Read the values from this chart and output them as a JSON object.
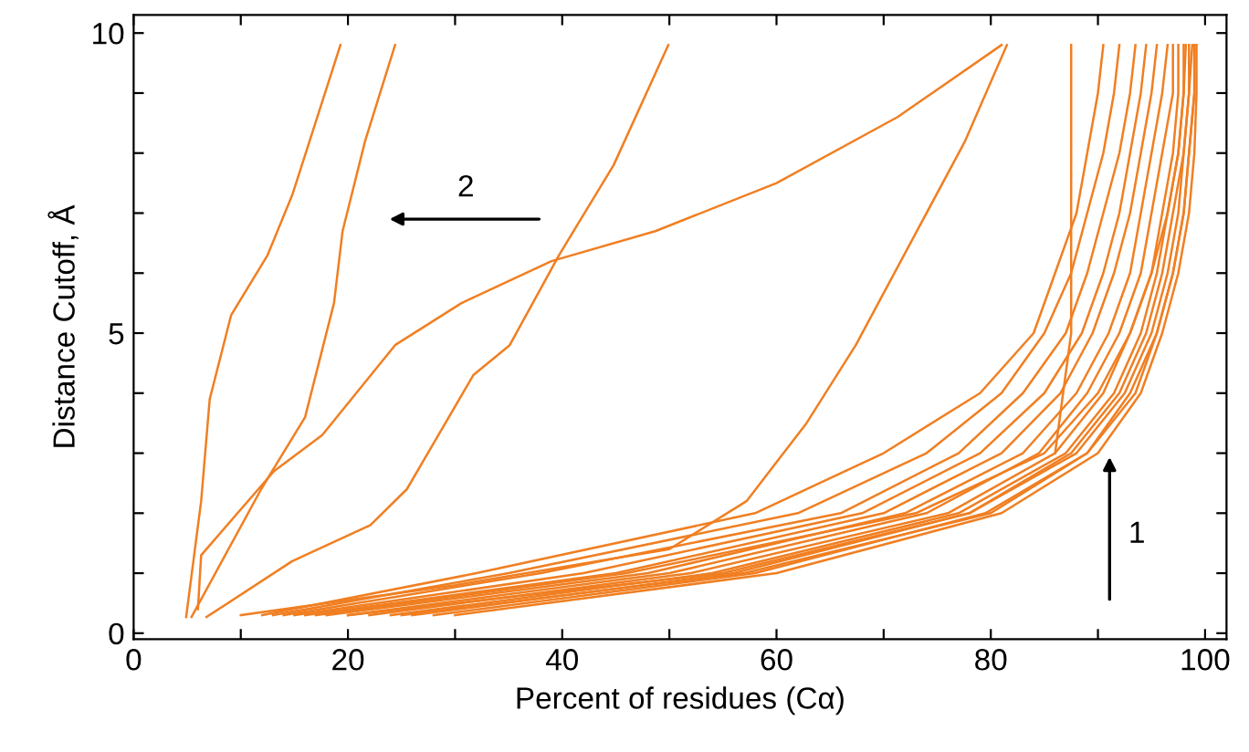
{
  "chart_data": {
    "type": "line",
    "xlabel": "Percent of residues (Cα)",
    "ylabel": "Distance Cutoff, Å",
    "xlim": [
      0,
      102
    ],
    "ylim": [
      -0.1,
      10.3
    ],
    "xticks": [
      0,
      {
        "value": 10,
        "label": null
      },
      20,
      {
        "value": 30,
        "label": null
      },
      40,
      {
        "value": 50,
        "label": null
      },
      60,
      {
        "value": 70,
        "label": null
      },
      80,
      {
        "value": 90,
        "label": null
      },
      100
    ],
    "yticks": [
      0,
      {
        "value": 1,
        "label": null
      },
      {
        "value": 2,
        "label": null
      },
      {
        "value": 3,
        "label": null
      },
      {
        "value": 4,
        "label": null
      },
      5,
      {
        "value": 6,
        "label": null
      },
      {
        "value": 7,
        "label": null
      },
      {
        "value": 8,
        "label": null
      },
      {
        "value": 9,
        "label": null
      },
      10
    ],
    "grid": false,
    "marker": "none",
    "line_style": "solid",
    "annotations": [
      "2",
      "1"
    ],
    "series": [
      {
        "color": "#f07f22",
        "x": [
          4.9,
          6.3,
          7.1,
          9.1,
          12.5,
          14.8,
          19.3
        ],
        "values": [
          0.27,
          2.2,
          3.9,
          5.3,
          6.3,
          7.3,
          9.8
        ]
      },
      {
        "color": "#f07f22",
        "x": [
          5.4,
          11.9,
          16,
          18.7,
          19.5,
          21.6,
          24.4
        ],
        "values": [
          0.27,
          2.4,
          3.6,
          5.5,
          6.7,
          8.2,
          9.8
        ]
      },
      {
        "color": "#f07f22",
        "x": [
          6,
          6.3,
          13.1,
          17.6,
          24.4,
          30.6,
          39,
          48.7,
          60,
          71.3,
          81
        ],
        "values": [
          0.4,
          1.3,
          2.7,
          3.3,
          4.8,
          5.5,
          6.2,
          6.7,
          7.5,
          8.6,
          9.8
        ]
      },
      {
        "color": "#f07f22",
        "x": [
          6.8,
          14.8,
          22.1,
          25.5,
          31.7,
          35.1,
          39.7,
          44.8,
          49.9
        ],
        "values": [
          0.27,
          1.2,
          1.8,
          2.4,
          4.3,
          4.8,
          6.3,
          7.8,
          9.8
        ]
      },
      {
        "color": "#f07f22",
        "x": [
          10,
          30,
          50,
          57.2,
          62.8,
          67.4,
          77.6,
          81.5
        ],
        "values": [
          0.3,
          0.8,
          1.4,
          2.2,
          3.5,
          4.8,
          8.2,
          9.8
        ]
      },
      {
        "color": "#f07f22",
        "x": [
          86,
          87.5,
          87.5
        ],
        "values": [
          3.0,
          5,
          9.8
        ]
      },
      {
        "color": "#f07f22",
        "x": [
          12,
          32,
          58,
          70,
          79,
          84,
          86,
          88,
          89,
          90,
          90.5
        ],
        "values": [
          0.3,
          1,
          2,
          3,
          4,
          5,
          6,
          7,
          8,
          9,
          9.8
        ]
      },
      {
        "color": "#f07f22",
        "x": [
          13,
          35,
          62,
          74,
          81,
          85,
          87.5,
          89,
          90.5,
          91.5,
          92
        ],
        "values": [
          0.3,
          1,
          2,
          3,
          4,
          5,
          6,
          7,
          8,
          9,
          9.8
        ]
      },
      {
        "color": "#f07f22",
        "x": [
          14,
          38,
          66,
          77,
          83,
          87,
          89,
          90.5,
          92,
          93,
          93.5
        ],
        "values": [
          0.3,
          1,
          2,
          3,
          4,
          5,
          6,
          7,
          8,
          9,
          9.8
        ]
      },
      {
        "color": "#f07f22",
        "x": [
          15,
          42,
          68,
          79,
          85,
          88.5,
          90.5,
          92,
          93,
          94,
          94.5
        ],
        "values": [
          0.3,
          1,
          2,
          3,
          4,
          5,
          6,
          7,
          8,
          9,
          9.8
        ]
      },
      {
        "color": "#f07f22",
        "x": [
          16,
          45,
          70,
          81,
          86.5,
          89.5,
          91.5,
          93,
          94,
          95,
          95.5
        ],
        "values": [
          0.3,
          1,
          2,
          3,
          4,
          5,
          6,
          7,
          8,
          9,
          9.8
        ]
      },
      {
        "color": "#f07f22",
        "x": [
          17,
          46,
          73,
          85,
          90,
          93,
          95,
          96.5,
          97.5,
          98,
          98.2
        ],
        "values": [
          0.3,
          1,
          2,
          3,
          4,
          5,
          6,
          7,
          8,
          9,
          9.8
        ]
      },
      {
        "color": "#f07f22",
        "x": [
          18,
          48,
          72,
          83,
          88,
          91,
          93,
          94,
          95,
          96,
          96.5
        ],
        "values": [
          0.3,
          1,
          2,
          3,
          4,
          5,
          6,
          7,
          8,
          9,
          9.8
        ]
      },
      {
        "color": "#f07f22",
        "x": [
          20,
          50,
          74,
          84.5,
          89,
          92,
          94,
          95,
          96,
          97,
          97
        ],
        "values": [
          0.3,
          1,
          2,
          3,
          4,
          5,
          6,
          7,
          8,
          9,
          9.8
        ]
      },
      {
        "color": "#f07f22",
        "x": [
          20,
          55,
          78,
          87.5,
          92,
          94.5,
          96,
          97,
          98,
          98.5,
          98.8
        ],
        "values": [
          0.3,
          1,
          2,
          3,
          4,
          5,
          6,
          7,
          8,
          9,
          9.8
        ]
      },
      {
        "color": "#f07f22",
        "x": [
          22,
          52,
          76,
          86,
          90.5,
          93,
          95,
          96,
          97,
          97.5,
          97.5
        ],
        "values": [
          0.3,
          1,
          2,
          3,
          4,
          5,
          6,
          7,
          8,
          9,
          9.8
        ]
      },
      {
        "color": "#f07f22",
        "x": [
          24,
          54,
          77,
          87,
          91.5,
          94,
          95.5,
          96.5,
          97.5,
          98,
          98
        ],
        "values": [
          0.3,
          1,
          2,
          3,
          4,
          5,
          6,
          7,
          8,
          9,
          9.8
        ]
      },
      {
        "color": "#f07f22",
        "x": [
          25,
          57,
          80,
          89,
          93,
          95.5,
          97,
          98,
          98.5,
          99,
          99
        ],
        "values": [
          0.3,
          1,
          2,
          3,
          4,
          5,
          6,
          7,
          8,
          9,
          9.8
        ]
      },
      {
        "color": "#f07f22",
        "x": [
          26,
          56,
          78,
          88,
          92.5,
          95,
          96.5,
          97.5,
          98,
          98.5,
          98.5
        ],
        "values": [
          0.3,
          1,
          2,
          3,
          4,
          5,
          6,
          7,
          8,
          9,
          9.8
        ]
      },
      {
        "color": "#f07f22",
        "x": [
          28,
          58,
          79.5,
          89,
          93.5,
          95.5,
          97,
          98,
          98.5,
          99,
          99
        ],
        "values": [
          0.3,
          1,
          2,
          3,
          4,
          5,
          6,
          7,
          8,
          9,
          9.8
        ]
      },
      {
        "color": "#f07f22",
        "x": [
          30,
          60,
          81,
          90,
          94,
          96,
          97.5,
          98.5,
          99,
          99.2,
          99.2
        ],
        "values": [
          0.3,
          1,
          2,
          3,
          4,
          5,
          6,
          7,
          8,
          9,
          9.8
        ]
      }
    ]
  }
}
